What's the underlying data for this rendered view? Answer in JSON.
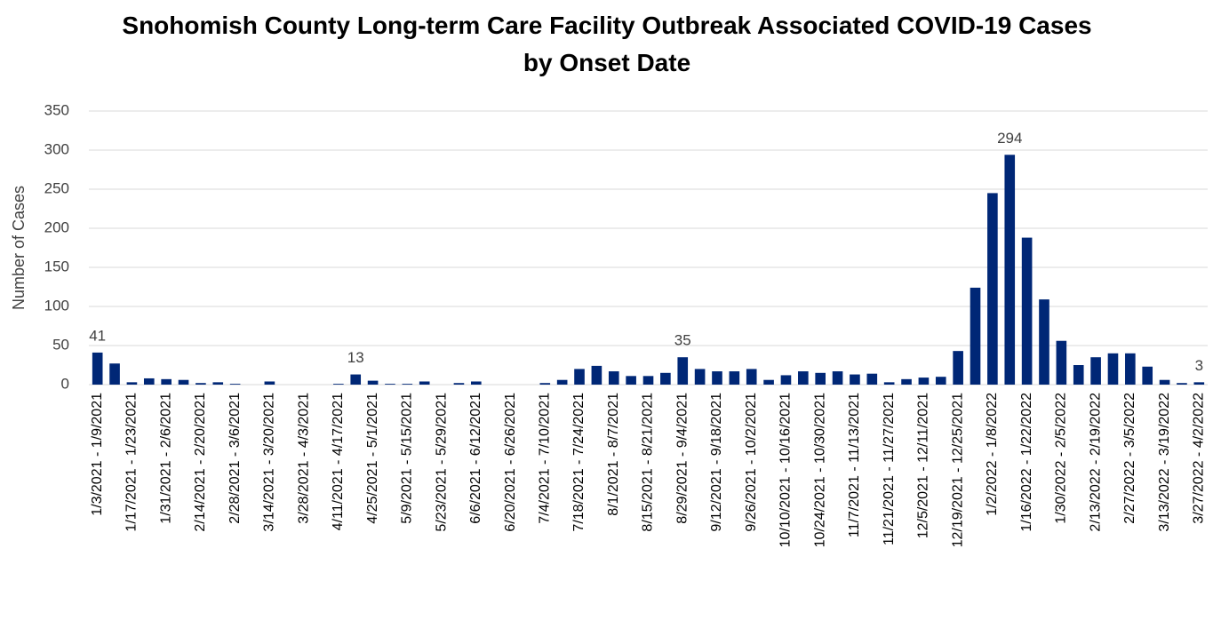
{
  "chart_data": {
    "type": "bar",
    "title": "Snohomish County Long-term Care Facility Outbreak Associated COVID-19 Cases by Onset Date",
    "y_label": "Number of Cases",
    "categories": [
      "1/3/2021 - 1/9/2021",
      null,
      "1/17/2021 - 1/23/2021",
      null,
      "1/31/2021 - 2/6/2021",
      null,
      "2/14/2021 - 2/20/2021",
      null,
      "2/28/2021 - 3/6/2021",
      null,
      "3/14/2021 - 3/20/2021",
      null,
      "3/28/2021 - 4/3/2021",
      null,
      "4/11/2021 - 4/17/2021",
      null,
      "4/25/2021 - 5/1/2021",
      null,
      "5/9/2021 - 5/15/2021",
      null,
      "5/23/2021 - 5/29/2021",
      null,
      "6/6/2021 - 6/12/2021",
      null,
      "6/20/2021 - 6/26/2021",
      null,
      "7/4/2021 - 7/10/2021",
      null,
      "7/18/2021 - 7/24/2021",
      null,
      "8/1/2021 - 8/7/2021",
      null,
      "8/15/2021 - 8/21/2021",
      null,
      "8/29/2021 - 9/4/2021",
      null,
      "9/12/2021 - 9/18/2021",
      null,
      "9/26/2021 - 10/2/2021",
      null,
      "10/10/2021 - 10/16/2021",
      null,
      "10/24/2021 - 10/30/2021",
      null,
      "11/7/2021 - 11/13/2021",
      null,
      "11/21/2021 - 11/27/2021",
      null,
      "12/5/2021 - 12/11/2021",
      null,
      "12/19/2021 - 12/25/2021",
      null,
      "1/2/2022 - 1/8/2022",
      null,
      "1/16/2022 - 1/22/2022",
      null,
      "1/30/2022 - 2/5/2022",
      null,
      "2/13/2022 - 2/19/2022",
      null,
      "2/27/2022 - 3/5/2022",
      null,
      "3/13/2022 - 3/19/2022",
      null,
      "3/27/2022 - 4/2/2022"
    ],
    "values": [
      41,
      27,
      3,
      8,
      7,
      6,
      2,
      3,
      1,
      0,
      4,
      0,
      0,
      0,
      1,
      13,
      5,
      1,
      1,
      4,
      0,
      2,
      4,
      0,
      0,
      0,
      2,
      6,
      20,
      24,
      17,
      11,
      11,
      15,
      35,
      20,
      17,
      17,
      20,
      6,
      12,
      17,
      15,
      17,
      13,
      14,
      3,
      7,
      9,
      10,
      43,
      124,
      245,
      294,
      188,
      109,
      56,
      25,
      35,
      40,
      40,
      23,
      6,
      2,
      3
    ],
    "value_labels": [
      "41",
      null,
      null,
      null,
      null,
      null,
      null,
      null,
      null,
      null,
      null,
      null,
      null,
      null,
      null,
      "13",
      null,
      null,
      null,
      null,
      null,
      null,
      null,
      null,
      null,
      null,
      null,
      null,
      null,
      null,
      null,
      null,
      null,
      null,
      "35",
      null,
      null,
      null,
      null,
      null,
      null,
      null,
      null,
      null,
      null,
      null,
      null,
      null,
      null,
      null,
      null,
      null,
      null,
      "294",
      null,
      null,
      null,
      null,
      null,
      null,
      null,
      null,
      null,
      null,
      "3"
    ],
    "color": "#002776",
    "ylim": [
      0,
      350
    ],
    "yticks": [
      0,
      50,
      100,
      150,
      200,
      250,
      300,
      350
    ],
    "grid": true
  }
}
